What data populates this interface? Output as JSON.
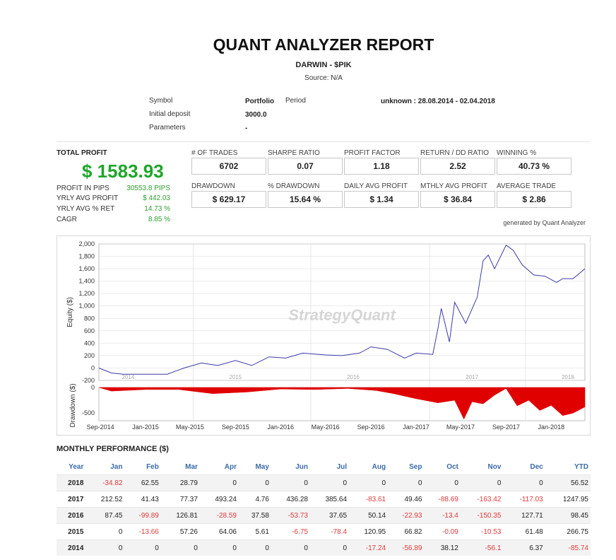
{
  "header": {
    "title": "QUANT ANALYZER REPORT",
    "subtitle": "DARWIN - $PIK",
    "source": "Source: N/A"
  },
  "meta": {
    "symbol_label": "Symbol",
    "symbol_value": "Portfolio",
    "period_label": "Period",
    "period_value": "unknown : 28.08.2014 - 02.04.2018",
    "deposit_label": "Initial deposit",
    "deposit_value": "3000.0",
    "parameters_label": "Parameters",
    "parameters_value": "-"
  },
  "summary": {
    "total_profit_label": "TOTAL PROFIT",
    "total_profit_value": "$ 1583.93",
    "stats": [
      {
        "label": "PROFIT IN PIPS",
        "value": "30553.8 PIPS"
      },
      {
        "label": "YRLY AVG PROFIT",
        "value": "$ 442.03"
      },
      {
        "label": "YRLY AVG % RET",
        "value": "14.73 %"
      },
      {
        "label": "CAGR",
        "value": "8.85 %"
      }
    ]
  },
  "metrics": [
    {
      "label": "# OF TRADES",
      "value": "6702"
    },
    {
      "label": "SHARPE RATIO",
      "value": "0.07"
    },
    {
      "label": "PROFIT FACTOR",
      "value": "1.18"
    },
    {
      "label": "RETURN / DD RATIO",
      "value": "2.52"
    },
    {
      "label": "WINNING %",
      "value": "40.73 %"
    },
    {
      "label": "DRAWDOWN",
      "value": "$ 629.17"
    },
    {
      "label": "% DRAWDOWN",
      "value": "15.64 %"
    },
    {
      "label": "DAILY AVG PROFIT",
      "value": "$ 1.34"
    },
    {
      "label": "MTHLY AVG PROFIT",
      "value": "$ 36.84"
    },
    {
      "label": "AVERAGE TRADE",
      "value": "$ 2.86"
    }
  ],
  "generated_by": "generated by Quant Analyzer",
  "chart_data": {
    "type": "line",
    "watermark": "StrategyQuant",
    "equity": {
      "ylabel": "Equity ($)",
      "ylim": [
        -200,
        2000
      ],
      "yticks": [
        -200,
        0,
        200,
        400,
        600,
        800,
        1000,
        1200,
        1400,
        1600,
        1800,
        2000
      ],
      "ytick_labels": [
        "-200",
        "0",
        "200",
        "400",
        "600",
        "800",
        "1,000",
        "1,200",
        "1,400",
        "1,600",
        "1,800",
        "2,000"
      ],
      "year_labels": [
        {
          "x": "2014-11-15",
          "label": "2014"
        },
        {
          "x": "2015-09-01",
          "label": "2015"
        },
        {
          "x": "2016-07-15",
          "label": "2016"
        },
        {
          "x": "2017-06-01",
          "label": "2017"
        },
        {
          "x": "2018-02-15",
          "label": "2018"
        }
      ],
      "x": [
        "2014-08-28",
        "2014-10-01",
        "2014-11-01",
        "2015-01-01",
        "2015-03-01",
        "2015-04-15",
        "2015-06-01",
        "2015-07-15",
        "2015-09-01",
        "2015-10-15",
        "2015-12-01",
        "2016-01-15",
        "2016-03-01",
        "2016-05-01",
        "2016-06-15",
        "2016-08-01",
        "2016-09-01",
        "2016-10-15",
        "2016-12-01",
        "2017-01-01",
        "2017-02-15",
        "2017-03-01",
        "2017-03-10",
        "2017-04-01",
        "2017-04-15",
        "2017-05-15",
        "2017-06-15",
        "2017-07-01",
        "2017-07-15",
        "2017-08-01",
        "2017-09-01",
        "2017-09-20",
        "2017-10-15",
        "2017-11-15",
        "2017-12-15",
        "2018-01-15",
        "2018-02-01",
        "2018-03-01",
        "2018-04-02"
      ],
      "y": [
        0,
        -80,
        -100,
        -100,
        -100,
        0,
        80,
        40,
        120,
        40,
        180,
        160,
        240,
        210,
        200,
        240,
        340,
        300,
        160,
        240,
        220,
        640,
        960,
        420,
        1060,
        720,
        1140,
        1730,
        1820,
        1600,
        1980,
        1900,
        1660,
        1500,
        1480,
        1380,
        1440,
        1440,
        1600
      ]
    },
    "drawdown": {
      "ylabel": "Drawdown ($)",
      "ylim": [
        -650,
        0
      ],
      "yticks": [
        -500,
        0
      ],
      "ytick_labels": [
        "-500",
        "0"
      ],
      "x": [
        "2014-08-28",
        "2014-10-01",
        "2015-01-01",
        "2015-04-01",
        "2015-07-01",
        "2015-10-01",
        "2016-01-01",
        "2016-04-01",
        "2016-07-01",
        "2016-09-15",
        "2016-11-01",
        "2017-01-01",
        "2017-03-01",
        "2017-04-15",
        "2017-05-10",
        "2017-06-01",
        "2017-07-01",
        "2017-08-01",
        "2017-09-01",
        "2017-10-01",
        "2017-11-01",
        "2017-12-01",
        "2018-01-01",
        "2018-02-01",
        "2018-03-01",
        "2018-04-02"
      ],
      "y": [
        0,
        -70,
        -40,
        -40,
        -120,
        -90,
        -30,
        -40,
        -20,
        -60,
        -120,
        -220,
        -300,
        -250,
        -620,
        -280,
        -320,
        -150,
        -20,
        -360,
        -250,
        -450,
        -350,
        -550,
        -500,
        -380
      ]
    },
    "x_tick_labels": [
      {
        "x": "2014-09-01",
        "label": "Sep-2014"
      },
      {
        "x": "2015-01-01",
        "label": "Jan-2015"
      },
      {
        "x": "2015-05-01",
        "label": "May-2015"
      },
      {
        "x": "2015-09-01",
        "label": "Sep-2015"
      },
      {
        "x": "2016-01-01",
        "label": "Jan-2016"
      },
      {
        "x": "2016-05-01",
        "label": "May-2016"
      },
      {
        "x": "2016-09-01",
        "label": "Sep-2016"
      },
      {
        "x": "2017-01-01",
        "label": "Jan-2017"
      },
      {
        "x": "2017-05-01",
        "label": "May-2017"
      },
      {
        "x": "2017-09-01",
        "label": "Sep-2017"
      },
      {
        "x": "2018-01-01",
        "label": "Jan-2018"
      }
    ],
    "colors": {
      "equity": "#3a3aa8",
      "drawdown": "#e00000",
      "grid": "#d9d9d9"
    }
  },
  "monthly": {
    "title": "MONTHLY PERFORMANCE ($)",
    "columns": [
      "Year",
      "Jan",
      "Feb",
      "Mar",
      "Apr",
      "May",
      "Jun",
      "Jul",
      "Aug",
      "Sep",
      "Oct",
      "Nov",
      "Dec",
      "YTD"
    ],
    "rows": [
      [
        "2018",
        "-34.82",
        "62.55",
        "28.79",
        "0",
        "0",
        "0",
        "0",
        "0",
        "0",
        "0",
        "0",
        "0",
        "56.52"
      ],
      [
        "2017",
        "212.52",
        "41.43",
        "77.37",
        "493.24",
        "4.76",
        "436.28",
        "385.64",
        "-83.61",
        "49.46",
        "-88.69",
        "-163.42",
        "-117.03",
        "1247.95"
      ],
      [
        "2016",
        "87.45",
        "-99.89",
        "126.81",
        "-28.59",
        "37.58",
        "-53.73",
        "37.65",
        "50.14",
        "-22.93",
        "-13.4",
        "-150.35",
        "127.71",
        "98.45"
      ],
      [
        "2015",
        "0",
        "-13.66",
        "57.26",
        "64.06",
        "5.61",
        "-6.75",
        "-78.4",
        "120.95",
        "66.82",
        "-0.09",
        "-10.53",
        "61.48",
        "266.75"
      ],
      [
        "2014",
        "0",
        "0",
        "0",
        "0",
        "0",
        "0",
        "0",
        "-17.24",
        "-56.89",
        "38.12",
        "-56.1",
        "6.37",
        "-85.74"
      ]
    ]
  }
}
